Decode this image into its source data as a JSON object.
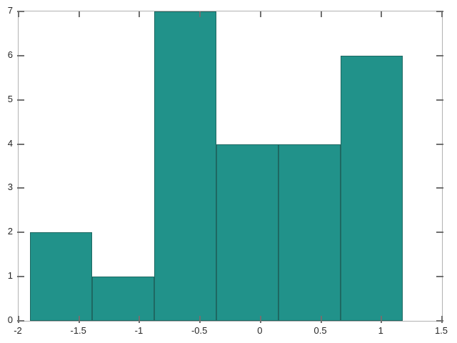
{
  "figure": {
    "background": "#ffffff",
    "title": ""
  },
  "chart_data": {
    "type": "bar",
    "subtype": "histogram",
    "title": "",
    "xlabel": "",
    "ylabel": "",
    "bin_edges": [
      -1.905,
      -1.392,
      -0.879,
      -0.366,
      0.147,
      0.66,
      1.173
    ],
    "counts": [
      2,
      1,
      7,
      4,
      4,
      6
    ],
    "xlim": [
      -2,
      1.5
    ],
    "ylim": [
      0,
      7
    ],
    "x_ticks": [
      -2,
      -1.5,
      -1,
      -0.5,
      0,
      0.5,
      1,
      1.5
    ],
    "x_tick_labels": [
      "-2",
      "-1.5",
      "-1",
      "-0.5",
      "0",
      "0.5",
      "1",
      "1.5"
    ],
    "y_ticks": [
      0,
      1,
      2,
      3,
      4,
      5,
      6,
      7
    ],
    "y_tick_labels": [
      "0",
      "1",
      "2",
      "3",
      "4",
      "5",
      "6",
      "7"
    ],
    "grid": false,
    "legend": null,
    "box": true,
    "tick_direction": "in",
    "colors": {
      "bar_fill": "#21928a",
      "bar_edge": "#1e6862",
      "axis_frame": "#b2b2b2",
      "tick_mark": "#707070",
      "tick_label": "#262626",
      "background": "#ffffff"
    }
  }
}
